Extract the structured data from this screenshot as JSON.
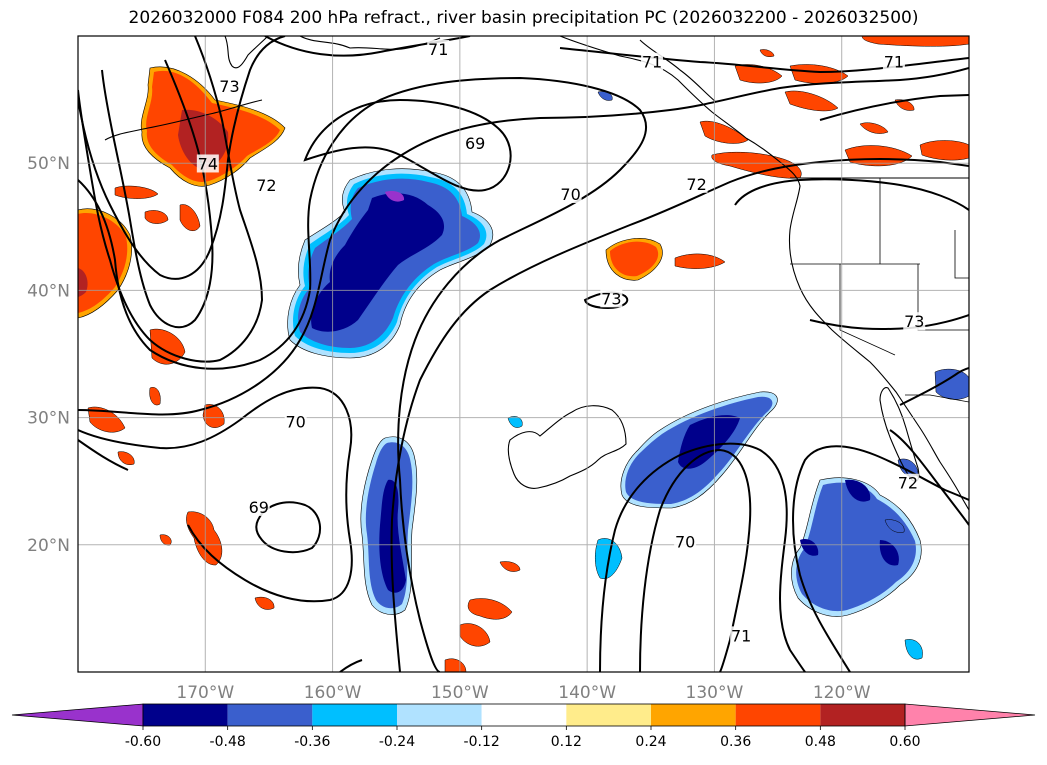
{
  "title": "2026032000 F084 200 hPa refract., river basin precipitation PC (2026032200 - 2026032500)",
  "lat_labels": [
    {
      "text": "50°N",
      "lat": 50
    },
    {
      "text": "40°N",
      "lat": 40
    },
    {
      "text": "30°N",
      "lat": 30
    },
    {
      "text": "20°N",
      "lat": 20
    }
  ],
  "lon_labels": [
    {
      "text": "170°W",
      "lon": -170
    },
    {
      "text": "160°W",
      "lon": -160
    },
    {
      "text": "150°W",
      "lon": -150
    },
    {
      "text": "140°W",
      "lon": -140
    },
    {
      "text": "130°W",
      "lon": -130
    },
    {
      "text": "120°W",
      "lon": -120
    }
  ],
  "map_extent": {
    "lon_min": -180,
    "lon_max": -110,
    "lat_min": 10,
    "lat_max": 60
  },
  "contour_labels": [
    {
      "text": "71",
      "lon": -151.7,
      "lat": 58.9
    },
    {
      "text": "71",
      "lon": -134.9,
      "lat": 57.9
    },
    {
      "text": "71",
      "lon": -115.9,
      "lat": 57.9
    },
    {
      "text": "73",
      "lon": -168.1,
      "lat": 56.0
    },
    {
      "text": "74",
      "lon": -169.8,
      "lat": 49.9
    },
    {
      "text": "72",
      "lon": -165.2,
      "lat": 48.2
    },
    {
      "text": "69",
      "lon": -148.8,
      "lat": 51.5
    },
    {
      "text": "70",
      "lon": -141.3,
      "lat": 47.5
    },
    {
      "text": "72",
      "lon": -131.4,
      "lat": 48.3
    },
    {
      "text": "73",
      "lon": -138.1,
      "lat": 39.3
    },
    {
      "text": "73",
      "lon": -114.3,
      "lat": 37.5
    },
    {
      "text": "70",
      "lon": -162.9,
      "lat": 29.6
    },
    {
      "text": "69",
      "lon": -165.8,
      "lat": 22.9
    },
    {
      "text": "70",
      "lon": -132.3,
      "lat": 20.2
    },
    {
      "text": "71",
      "lon": -127.9,
      "lat": 12.8
    },
    {
      "text": "72",
      "lon": -114.8,
      "lat": 24.8
    }
  ],
  "colorbar": {
    "levels": [
      "-0.60",
      "-0.48",
      "-0.36",
      "-0.24",
      "-0.12",
      "0.12",
      "0.24",
      "0.36",
      "0.48",
      "0.60"
    ],
    "colors": [
      "#9932CC",
      "#00008B",
      "#3A5FCD",
      "#00BFFF",
      "#B0E2FF",
      "#FFFFFF",
      "#FFEC8B",
      "#FFA500",
      "#FF4500",
      "#B22222",
      "#FF82AB"
    ]
  },
  "fill_colors": {
    "orange_red": "#FF4500",
    "orange": "#FFA500",
    "yellow": "#FFEC8B",
    "dark_red": "#B22222",
    "navy": "#00008B",
    "royal_blue": "#3A5FCD",
    "cyan": "#00BFFF",
    "light_blue": "#B0E2FF",
    "violet": "#9932CC"
  }
}
